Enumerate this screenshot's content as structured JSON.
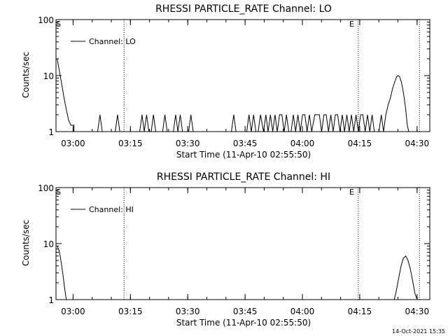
{
  "chart_data": [
    {
      "type": "line",
      "title": "RHESSI PARTICLE_RATE Channel: LO",
      "xlabel": "Start Time (11-Apr-10 02:55:50)",
      "ylabel": "Counts/sec",
      "yscale": "log",
      "ylim": [
        1,
        100
      ],
      "xlim_minutes": [
        -0.3,
        97.5
      ],
      "x_tick_minutes": [
        4.17,
        19.17,
        34.17,
        49.17,
        64.17,
        79.17,
        94.17
      ],
      "x_tick_labels": [
        "03:00",
        "03:15",
        "03:30",
        "03:45",
        "04:00",
        "04:15",
        "04:30"
      ],
      "y_tick_values": [
        1,
        10,
        100
      ],
      "y_tick_labels": [
        "1",
        "10",
        "100"
      ],
      "markers": [
        {
          "label": "S",
          "x": 0
        },
        {
          "label": "E",
          "x": 78.8
        }
      ],
      "dotted_lines_x": [
        17.5,
        78.8,
        94.8
      ],
      "legend": "Channel: LO",
      "series": [
        {
          "name": "Channel: LO",
          "x": [
            0,
            0.6,
            1.2,
            1.8,
            2.4,
            3.0,
            3.6,
            4.4,
            4.4,
            10.6,
            11.2,
            11.8,
            15.2,
            15.8,
            16.4,
            21.6,
            22.2,
            22.8,
            23.4,
            24.0,
            24.6,
            25.2,
            25.8,
            27.6,
            28.2,
            28.8,
            30.4,
            31.0,
            31.6,
            32.2,
            32.8,
            33.4,
            34.4,
            35.0,
            35.6,
            45.6,
            46.2,
            46.8,
            49.6,
            50.2,
            50.8,
            51.4,
            52.0,
            52.6,
            53.2,
            54.0,
            54.6,
            55.2,
            55.8,
            56.4,
            57.0,
            57.6,
            58.2,
            58.8,
            59.4,
            60.0,
            60.6,
            61.2,
            61.8,
            62.4,
            63.0,
            63.6,
            64.2,
            64.8,
            65.4,
            66.0,
            66.6,
            67.4,
            68.0,
            68.6,
            69.2,
            69.8,
            70.4,
            71.0,
            71.6,
            72.2,
            72.8,
            73.4,
            74.0,
            74.6,
            75.2,
            75.8,
            76.4,
            77.0,
            77.6,
            78.2,
            78.8,
            79.4,
            80.0,
            80.6,
            81.2,
            81.8,
            82.4,
            83.0,
            83.6,
            84.2,
            84.8,
            85.4,
            86.0,
            86.6,
            87.2,
            87.8,
            88.4,
            88.8,
            89.2,
            89.6,
            90.0,
            90.4,
            90.8,
            91.2,
            91.6,
            92.0,
            92.4,
            92.8,
            93.2,
            93.6,
            94.0,
            97.5
          ],
          "values": [
            20,
            12,
            7,
            4,
            2.5,
            1.6,
            1.3,
            1.3,
            1,
            1,
            2,
            1,
            1,
            2,
            1,
            1,
            2,
            1,
            2,
            1,
            1,
            2,
            1,
            1,
            2,
            1,
            1,
            2,
            1,
            2,
            1,
            1,
            1,
            2,
            1,
            1,
            2,
            1,
            1,
            2,
            1,
            2,
            1,
            1,
            2,
            1,
            2,
            1,
            2,
            1,
            2,
            1,
            2,
            2,
            1,
            2,
            1,
            1,
            2,
            1,
            2,
            1,
            2,
            2,
            1,
            2,
            1,
            2,
            2,
            2,
            1,
            2,
            2,
            1,
            2,
            1,
            2,
            2,
            1,
            2,
            1,
            2,
            1,
            2,
            1,
            2,
            1,
            2,
            2,
            1,
            2,
            1,
            2,
            1,
            1,
            1,
            2,
            1,
            2,
            3,
            4,
            6,
            8,
            9.5,
            10,
            9.5,
            8,
            6,
            4,
            2.5,
            1.3,
            1,
            1,
            1,
            1,
            1,
            1,
            1
          ]
        }
      ]
    },
    {
      "type": "line",
      "title": "RHESSI PARTICLE_RATE Channel: HI",
      "xlabel": "Start Time (11-Apr-10 02:55:50)",
      "ylabel": "Counts/sec",
      "yscale": "log",
      "ylim": [
        1,
        100
      ],
      "xlim_minutes": [
        -0.3,
        97.5
      ],
      "x_tick_minutes": [
        4.17,
        19.17,
        34.17,
        49.17,
        64.17,
        79.17,
        94.17
      ],
      "x_tick_labels": [
        "03:00",
        "03:15",
        "03:30",
        "03:45",
        "04:00",
        "04:15",
        "04:30"
      ],
      "y_tick_values": [
        1,
        10,
        100
      ],
      "y_tick_labels": [
        "1",
        "10",
        "100"
      ],
      "markers": [
        {
          "label": "S",
          "x": 0
        },
        {
          "label": "E",
          "x": 78.8
        }
      ],
      "dotted_lines_x": [
        17.5,
        78.8,
        94.8
      ],
      "legend": "Channel: HI",
      "series": [
        {
          "name": "Channel: HI",
          "x": [
            0,
            0.4,
            0.8,
            1.2,
            1.6,
            2.0,
            2.4,
            88.2,
            88.8,
            89.4,
            90.0,
            90.6,
            91.2,
            91.8,
            92.4,
            93.0,
            93.6,
            94.2
          ],
          "values": [
            9,
            8,
            6,
            4,
            2.5,
            1.5,
            1,
            1,
            1.5,
            2.5,
            4,
            5.5,
            6,
            5,
            3.5,
            2.2,
            1.3,
            1
          ]
        }
      ]
    }
  ],
  "timestamp": "14-Oct-2021 15:35"
}
